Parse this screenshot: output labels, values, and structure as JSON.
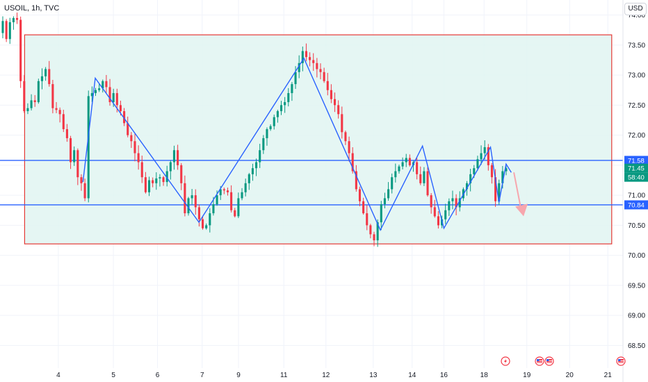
{
  "chart_data": {
    "type": "candlestick",
    "symbol": "USOIL, 1h, TVC",
    "currency": "USD",
    "y_ticks": [
      "74.00",
      "73.50",
      "73.00",
      "72.50",
      "72.00",
      "71.50",
      "71.00",
      "70.50",
      "70.00",
      "69.50",
      "69.00",
      "68.50"
    ],
    "y_tick_values": [
      74.0,
      73.5,
      73.0,
      72.5,
      72.0,
      71.5,
      71.0,
      70.5,
      70.0,
      69.5,
      69.0,
      68.5
    ],
    "ylim": [
      68.4,
      74.25
    ],
    "x_ticks": [
      {
        "label": "4",
        "pos": 0.09
      },
      {
        "label": "5",
        "pos": 0.175
      },
      {
        "label": "6",
        "pos": 0.243
      },
      {
        "label": "7",
        "pos": 0.312
      },
      {
        "label": "9",
        "pos": 0.368
      },
      {
        "label": "11",
        "pos": 0.438
      },
      {
        "label": "12",
        "pos": 0.503
      },
      {
        "label": "13",
        "pos": 0.576
      },
      {
        "label": "14",
        "pos": 0.636
      },
      {
        "label": "16",
        "pos": 0.685
      },
      {
        "label": "18",
        "pos": 0.747
      },
      {
        "label": "19",
        "pos": 0.813
      },
      {
        "label": "20",
        "pos": 0.879
      },
      {
        "label": "21",
        "pos": 0.938
      }
    ],
    "price_tags": [
      {
        "value": "71.58",
        "price": 71.58,
        "color": "#2962ff"
      },
      {
        "value": "71.45",
        "price": 71.45,
        "color": "#089981"
      },
      {
        "value": "58:40",
        "price": 71.3,
        "color": "#089981"
      },
      {
        "value": "70.84",
        "price": 70.84,
        "color": "#2962ff"
      }
    ],
    "horizontal_lines": [
      71.58,
      70.84
    ],
    "range_box": {
      "top": 73.67,
      "bottom": 70.19,
      "x_start": 0.038,
      "x_end": 0.944
    },
    "zigzag": [
      {
        "x": 0.128,
        "y": 71.22
      },
      {
        "x": 0.147,
        "y": 72.95
      },
      {
        "x": 0.307,
        "y": 70.55
      },
      {
        "x": 0.469,
        "y": 73.28
      },
      {
        "x": 0.587,
        "y": 70.42
      },
      {
        "x": 0.652,
        "y": 71.82
      },
      {
        "x": 0.685,
        "y": 70.45
      },
      {
        "x": 0.757,
        "y": 71.8
      },
      {
        "x": 0.77,
        "y": 70.88
      },
      {
        "x": 0.781,
        "y": 71.52
      },
      {
        "x": 0.789,
        "y": 71.38
      }
    ],
    "projection_arrow": {
      "from": {
        "x": 0.793,
        "y": 71.38
      },
      "to": {
        "x": 0.808,
        "y": 70.65
      }
    },
    "colors": {
      "up": "#089981",
      "down": "#f23645",
      "line": "#2962ff",
      "box_border": "#e53935",
      "box_fill": "#e0f4f1"
    },
    "closes": [
      73.9,
      73.6,
      73.88,
      73.95,
      73.92,
      72.9,
      72.4,
      72.45,
      72.58,
      72.55,
      72.9,
      72.98,
      73.1,
      72.85,
      72.45,
      72.42,
      72.35,
      72.1,
      71.95,
      71.55,
      71.75,
      71.3,
      71.2,
      70.95,
      72.65,
      72.7,
      72.75,
      72.78,
      72.9,
      72.8,
      72.55,
      72.7,
      72.5,
      72.4,
      72.2,
      72.0,
      71.9,
      71.7,
      71.55,
      71.3,
      71.05,
      71.25,
      71.2,
      71.28,
      71.3,
      71.22,
      71.4,
      71.55,
      71.75,
      71.5,
      71.2,
      70.7,
      70.95,
      71.0,
      70.8,
      70.6,
      70.45,
      70.5,
      70.7,
      70.85,
      71.0,
      71.1,
      71.08,
      71.05,
      70.75,
      70.65,
      70.95,
      71.05,
      71.2,
      71.35,
      71.45,
      71.55,
      71.75,
      71.95,
      72.1,
      72.15,
      72.3,
      72.4,
      72.5,
      72.55,
      72.7,
      72.85,
      73.05,
      73.2,
      73.4,
      73.3,
      73.25,
      73.2,
      73.1,
      73.05,
      72.9,
      72.75,
      72.6,
      72.5,
      72.35,
      72.05,
      71.9,
      71.7,
      71.4,
      71.1,
      70.9,
      70.7,
      70.5,
      70.35,
      70.25,
      70.55,
      70.85,
      70.95,
      71.1,
      71.3,
      71.4,
      71.48,
      71.55,
      71.62,
      71.5,
      71.55,
      71.35,
      71.2,
      71.4,
      71.0,
      70.8,
      70.65,
      70.5,
      70.6,
      70.75,
      70.9,
      70.95,
      70.8,
      70.95,
      71.1,
      71.2,
      71.35,
      71.45,
      71.6,
      71.7,
      71.8,
      71.5,
      71.3,
      70.9,
      71.2,
      71.4,
      71.45
    ]
  }
}
